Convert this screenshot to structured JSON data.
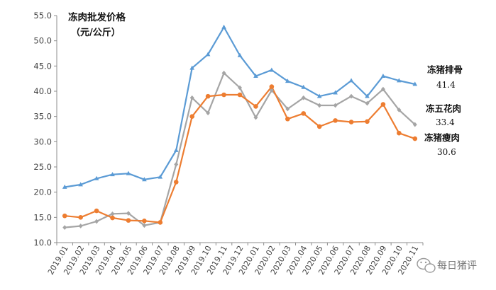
{
  "chart_data": {
    "type": "line",
    "title": "冻肉批发价格",
    "subtitle": "（元/公斤）",
    "xlabel": "",
    "ylabel": "",
    "ylim": [
      10.0,
      55.0
    ],
    "yticks": [
      "10.0",
      "15.0",
      "20.0",
      "25.0",
      "30.0",
      "35.0",
      "40.0",
      "45.0",
      "50.0",
      "55.0"
    ],
    "grid": false,
    "categories": [
      "2019.01",
      "2019.02",
      "2019.03",
      "2019.04",
      "2019.05",
      "2019.06",
      "2019.07",
      "2019.08",
      "2019.09",
      "2019.10",
      "2019.11",
      "2019.12",
      "2020.01",
      "2020.02",
      "2020.03",
      "2020.04",
      "2020.05",
      "2020.06",
      "2020.07",
      "2020.08",
      "2020.09",
      "2020.10",
      "2020.11"
    ],
    "series": [
      {
        "name": "冻猪排骨",
        "end_label": "41.4",
        "color": "#5b9bd5",
        "marker": "triangle",
        "values": [
          21.0,
          21.5,
          22.7,
          23.5,
          23.7,
          22.5,
          23.0,
          28.3,
          44.6,
          47.3,
          52.7,
          47.1,
          43.0,
          44.2,
          42.0,
          40.8,
          39.0,
          39.7,
          42.1,
          39.0,
          43.0,
          42.1,
          41.4
        ]
      },
      {
        "name": "冻五花肉",
        "end_label": "33.4",
        "color": "#a5a5a5",
        "marker": "diamond",
        "values": [
          13.0,
          13.3,
          14.2,
          15.7,
          15.8,
          13.4,
          14.0,
          25.5,
          38.7,
          35.7,
          43.6,
          40.7,
          34.8,
          40.2,
          36.5,
          38.7,
          37.2,
          37.2,
          39.0,
          37.6,
          40.4,
          36.3,
          33.4
        ]
      },
      {
        "name": "冻猪瘦肉",
        "end_label": "30.6",
        "color": "#ed7d31",
        "marker": "circle",
        "values": [
          15.3,
          15.0,
          16.3,
          14.9,
          14.4,
          14.3,
          14.0,
          22.0,
          35.0,
          39.0,
          39.3,
          39.3,
          37.0,
          40.9,
          34.5,
          35.6,
          33.0,
          34.2,
          33.9,
          34.0,
          37.4,
          31.7,
          30.6
        ]
      }
    ]
  },
  "watermark": {
    "text": "每日猪评",
    "icon": "wechat-icon"
  }
}
